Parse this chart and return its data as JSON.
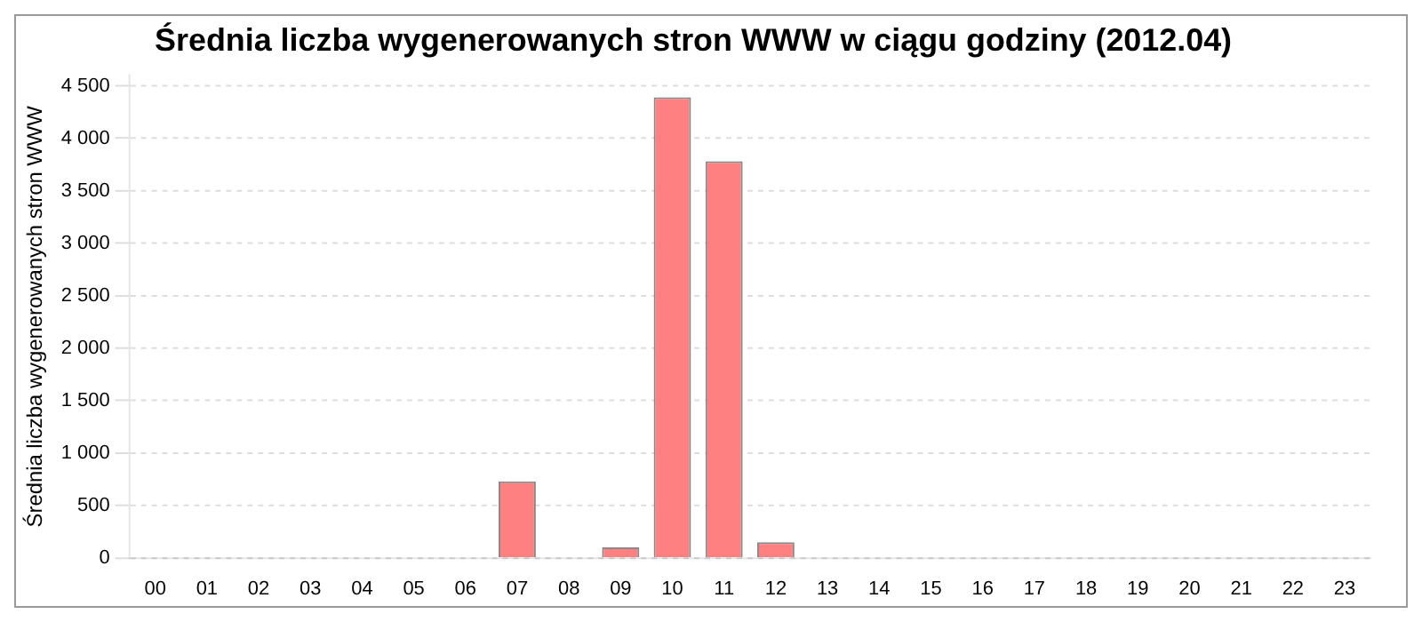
{
  "chart_data": {
    "type": "bar",
    "title": "Średnia liczba wygenerowanych stron WWW w ciągu godziny (2012.04)",
    "ylabel": "Średnia liczba wygenerowanych stron WWW",
    "categories": [
      "00",
      "01",
      "02",
      "03",
      "04",
      "05",
      "06",
      "07",
      "08",
      "09",
      "10",
      "11",
      "12",
      "13",
      "14",
      "15",
      "16",
      "17",
      "18",
      "19",
      "20",
      "21",
      "22",
      "23"
    ],
    "values": [
      0,
      0,
      0,
      0,
      0,
      0,
      0,
      730,
      0,
      100,
      4390,
      3780,
      150,
      0,
      0,
      0,
      0,
      0,
      0,
      0,
      0,
      0,
      0,
      0
    ],
    "color": "#ff8080",
    "ylim": [
      0,
      4600
    ],
    "yticks": [
      0,
      500,
      {
        "value": 1000,
        "label": "1 000"
      },
      {
        "value": 1500,
        "label": "1 500"
      },
      {
        "value": 2000,
        "label": "2 000"
      },
      {
        "value": 2500,
        "label": "2 500"
      },
      {
        "value": 3000,
        "label": "3 000"
      },
      {
        "value": 3500,
        "label": "3 500"
      },
      {
        "value": 4000,
        "label": "4 000"
      },
      {
        "value": 4500,
        "label": "4 500"
      }
    ],
    "grid": "y",
    "legend": false
  }
}
